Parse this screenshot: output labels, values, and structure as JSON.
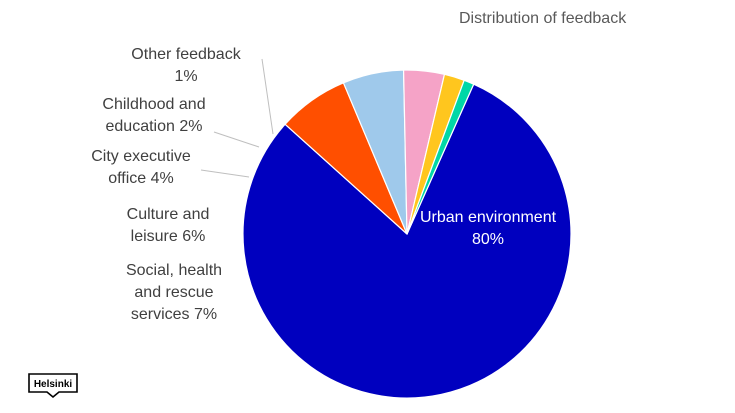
{
  "chart_data": {
    "type": "pie",
    "title": "Distribution of feedback",
    "slices": [
      {
        "label": "Urban environment",
        "value": 80,
        "display": "Urban environment\n80%",
        "color": "#0000BF"
      },
      {
        "label": "Social, health and rescue services",
        "value": 7,
        "display": "Social, health\nand rescue\nservices 7%",
        "color": "#FF4F00"
      },
      {
        "label": "Culture and leisure",
        "value": 6,
        "display": "Culture and\nleisure 6%",
        "color": "#9FC9EB"
      },
      {
        "label": "City executive office",
        "value": 4,
        "display": "City executive\noffice 4%",
        "color": "#F5A3C7"
      },
      {
        "label": "Childhood and education",
        "value": 2,
        "display": "Childhood and\neducation 2%",
        "color": "#FFC61E"
      },
      {
        "label": "Other feedback",
        "value": 1,
        "display": "Other feedback\n1%",
        "color": "#00D7A7"
      }
    ]
  },
  "logo": {
    "text": "Helsinki"
  }
}
